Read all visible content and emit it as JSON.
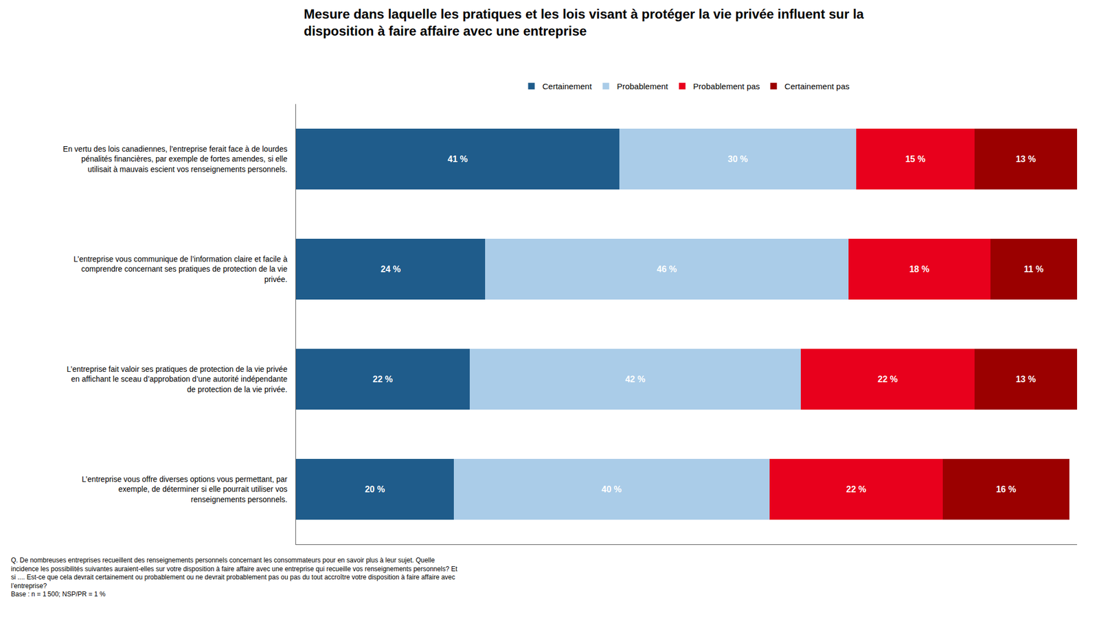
{
  "chart_data": {
    "type": "bar",
    "orientation": "horizontal",
    "stacked": true,
    "data_labels": true,
    "tick_labels": false,
    "grid": false,
    "legend": "top",
    "title": "Mesure dans laquelle les pratiques et les lois visant à protéger la vie privée influent sur la\ndisposition à faire affaire avec une entreprise",
    "categories": [
      "En vertu des lois canadiennes, l’entreprise ferait face à de lourdes\npénalités financières, par exemple de fortes amendes, si elle\nutilisait à mauvais escient vos renseignements personnels.",
      "L’entreprise vous communique de l’information claire et facile à\ncomprendre concernant ses pratiques de protection de la vie\nprivée.",
      "L’entreprise fait valoir ses pratiques de protection de la vie privée\nen affichant le sceau d’approbation d’une autorité indépendante\nde protection de la vie privée.",
      "L’entreprise vous offre diverses options vous permettant, par\nexemple, de déterminer si elle pourrait utiliser vos\nrenseignements personnels."
    ],
    "series": [
      {
        "name": "Certainement",
        "color": "#1F5C8B",
        "values": [
          41,
          24,
          22,
          20
        ],
        "value_labels": [
          "41 %",
          "24 %",
          "22 %",
          "20 %"
        ]
      },
      {
        "name": "Probablement",
        "color": "#AACCE8",
        "values": [
          30,
          46,
          42,
          40
        ],
        "value_labels": [
          "30 %",
          "46 %",
          "42 %",
          "40 %"
        ]
      },
      {
        "name": "Probablement pas",
        "color": "#E8001C",
        "values": [
          15,
          18,
          22,
          22
        ],
        "value_labels": [
          "15 %",
          "18 %",
          "22 %",
          "22 %"
        ]
      },
      {
        "name": "Certainement pas",
        "color": "#9B0000",
        "values": [
          13,
          11,
          13,
          16
        ],
        "value_labels": [
          "13 %",
          "11 %",
          "13 %",
          "16 %"
        ]
      }
    ],
    "xlim": [
      0,
      99
    ],
    "annotations": [
      "Q. De nombreuses entreprises recueillent des renseignements personnels concernant les consommateurs pour en savoir plus à leur sujet. Quelle\nincidence les possibilités suivantes auraient-elles sur votre disposition à faire affaire avec une entreprise qui recueille vos renseignements personnels? Et\nsi .... Est-ce que cela devrait certainement ou probablement ou ne devrait probablement pas ou pas du tout accroître votre disposition à faire affaire avec\nl’entreprise?\nBase : n = 1 500; NSP/PR = 1 %"
    ]
  }
}
